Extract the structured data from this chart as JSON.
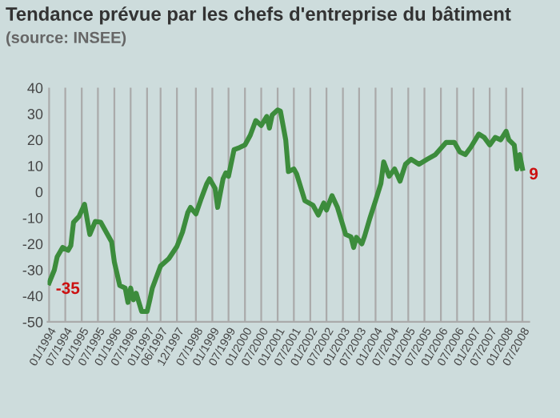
{
  "chart_data": {
    "type": "line",
    "title": "Tendance prévue par les chefs d'entreprise du bâtiment",
    "subtitle": "(source: INSEE)",
    "x": [
      "1994-01",
      "1994-03",
      "1994-04",
      "1994-06",
      "1994-08",
      "1994-09",
      "1994-10",
      "1994-12",
      "1995-02",
      "1995-04",
      "1995-06",
      "1995-08",
      "1995-12",
      "1996-01",
      "1996-03",
      "1996-05",
      "1996-06",
      "1996-07",
      "1996-08",
      "1996-09",
      "1996-11",
      "1997-01",
      "1997-02",
      "1997-03",
      "1997-06",
      "1997-09",
      "1997-12",
      "1998-02",
      "1998-04",
      "1998-05",
      "1998-07",
      "1998-09",
      "1998-11",
      "1998-12",
      "1999-02",
      "1999-03",
      "1999-05",
      "1999-06",
      "1999-07",
      "1999-09",
      "1999-11",
      "2000-01",
      "2000-03",
      "2000-05",
      "2000-07",
      "2000-09",
      "2000-10",
      "2000-11",
      "2001-01",
      "2001-02",
      "2001-04",
      "2001-05",
      "2001-07",
      "2001-08",
      "2001-11",
      "2002-02",
      "2002-04",
      "2002-06",
      "2002-07",
      "2002-09",
      "2002-11",
      "2003-02",
      "2003-04",
      "2003-05",
      "2003-06",
      "2003-08",
      "2003-09",
      "2003-11",
      "2004-01",
      "2004-03",
      "2004-04",
      "2004-06",
      "2004-08",
      "2004-10",
      "2004-12",
      "2005-02",
      "2005-05",
      "2005-08",
      "2005-11",
      "2006-03",
      "2006-06",
      "2006-08",
      "2006-10",
      "2006-12",
      "2007-03",
      "2007-05",
      "2007-07",
      "2007-09",
      "2007-11",
      "2008-01",
      "2008-02",
      "2008-04",
      "2008-05",
      "2008-06",
      "2008-07"
    ],
    "series": [
      {
        "color": "#3c8c3c",
        "values": [
          -35,
          -30,
          -25,
          -21.4,
          -22.5,
          -20.7,
          -11.7,
          -9.5,
          -4.8,
          -16.4,
          -11.4,
          -11.7,
          -19.2,
          -27,
          -36,
          -37,
          -42.5,
          -37,
          -41.5,
          -39,
          -46,
          -46,
          -41.5,
          -37,
          -28.5,
          -25.7,
          -21,
          -15.5,
          -8,
          -6,
          -8.5,
          -2.4,
          3.2,
          5,
          1.3,
          -6,
          5,
          7.3,
          6,
          16.2,
          17,
          18,
          21.8,
          27.4,
          25.5,
          29,
          24.5,
          29.6,
          31.5,
          31,
          20,
          7.8,
          8.8,
          6.9,
          -3.4,
          -5.2,
          -8.9,
          -4.3,
          -7,
          -1.5,
          -6,
          -16.4,
          -17.3,
          -21.4,
          -17.5,
          -20,
          -17,
          -9.9,
          -3.4,
          3.2,
          11.5,
          6,
          8.8,
          4.1,
          10.6,
          12.5,
          10.6,
          12.5,
          14.3,
          19,
          19,
          15.3,
          14.3,
          17.1,
          22.2,
          20.9,
          18,
          20.9,
          20,
          23.3,
          20,
          18,
          8.8,
          14.3,
          9
        ]
      }
    ],
    "annotations": [
      {
        "text": "-35",
        "x": "1994-01",
        "y": -35
      },
      {
        "text": "9",
        "x": "2008-07",
        "y": 9
      }
    ],
    "xlim": [
      "1993-12-15",
      "2008-09-15"
    ],
    "xticks": [
      {
        "value": "1994-01",
        "label": "01/1994"
      },
      {
        "value": "1994-07",
        "label": "07/1994"
      },
      {
        "value": "1995-01",
        "label": "01/1995"
      },
      {
        "value": "1995-07",
        "label": "07/1995"
      },
      {
        "value": "1996-01",
        "label": "01/1996"
      },
      {
        "value": "1996-07",
        "label": "07/1996"
      },
      {
        "value": "1997-01",
        "label": "01/1997"
      },
      {
        "value": "1997-06",
        "label": "06/1997"
      },
      {
        "value": "1997-12",
        "label": "12/1997"
      },
      {
        "value": "1998-07",
        "label": "07/1998"
      },
      {
        "value": "1999-01",
        "label": "01/1999"
      },
      {
        "value": "1999-07",
        "label": "07/1999"
      },
      {
        "value": "2000-01",
        "label": "01/2000"
      },
      {
        "value": "2000-07",
        "label": "07/2000"
      },
      {
        "value": "2001-01",
        "label": "01/2001"
      },
      {
        "value": "2001-07",
        "label": "07/2001"
      },
      {
        "value": "2002-01",
        "label": "01/2002"
      },
      {
        "value": "2002-07",
        "label": "07/2002"
      },
      {
        "value": "2003-01",
        "label": "01/2003"
      },
      {
        "value": "2003-07",
        "label": "07/2003"
      },
      {
        "value": "2004-01",
        "label": "01/2004"
      },
      {
        "value": "2004-07",
        "label": "07/2004"
      },
      {
        "value": "2005-01",
        "label": "01/2005"
      },
      {
        "value": "2005-07",
        "label": "07/2005"
      },
      {
        "value": "2006-01",
        "label": "01/2006"
      },
      {
        "value": "2006-07",
        "label": "07/2006"
      },
      {
        "value": "2007-01",
        "label": "01/2007"
      },
      {
        "value": "2007-07",
        "label": "07/2007"
      },
      {
        "value": "2008-01",
        "label": "01/2008"
      },
      {
        "value": "2008-07",
        "label": "07/2008"
      }
    ],
    "ylim": [
      -50,
      40
    ],
    "yticks": [
      -50,
      -40,
      -30,
      -20,
      -10,
      0,
      10,
      20,
      30,
      40
    ],
    "grid": "x",
    "legend": false,
    "marker": "none",
    "line_style": "solid"
  }
}
